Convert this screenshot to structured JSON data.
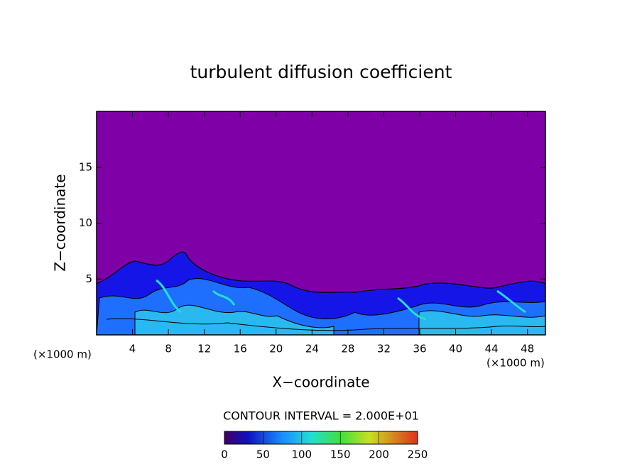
{
  "chart_data": {
    "type": "contour",
    "title": "turbulent diffusion coefficient",
    "x_label": "X−coordinate",
    "y_label": "Z−coordinate",
    "x_unit_labels": [
      "(×1000 m)",
      "(×1000 m)"
    ],
    "xlim": [
      0,
      50
    ],
    "xticks": [
      4,
      8,
      12,
      16,
      20,
      24,
      28,
      32,
      36,
      40,
      44,
      48
    ],
    "ylim": [
      0,
      20
    ],
    "yticks": [
      5,
      10,
      15
    ],
    "background_color": "#8000a8",
    "contour_interval_label": "CONTOUR INTERVAL = 2.000E+01",
    "colorbar": {
      "lim": [
        0,
        250
      ],
      "ticks": [
        0,
        50,
        100,
        150,
        200,
        250
      ]
    }
  }
}
